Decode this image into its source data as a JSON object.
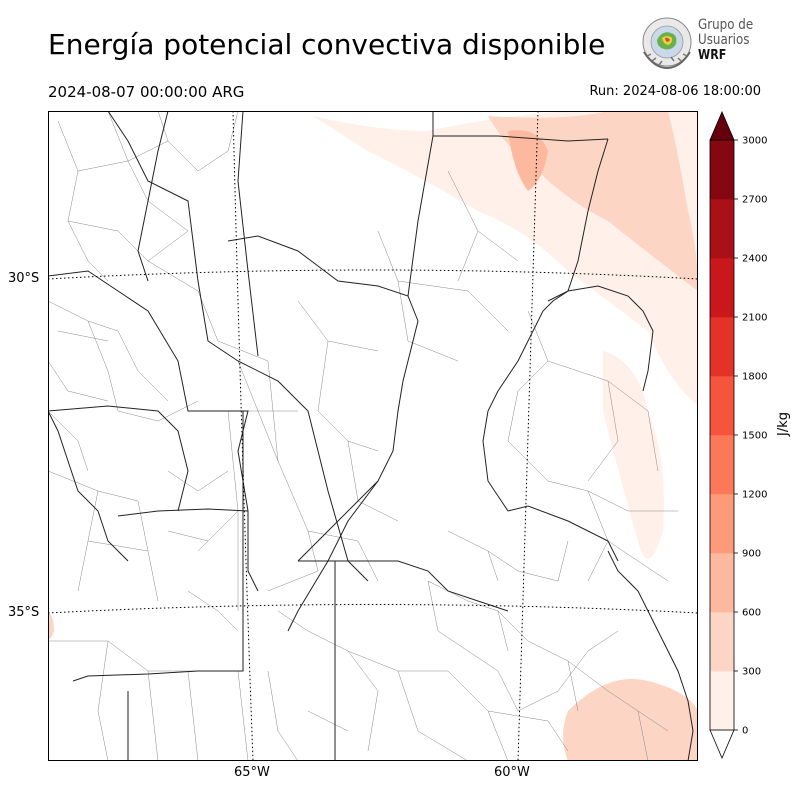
{
  "header": {
    "title": "Energía potencial convectiva disponible",
    "valid_time": "2024-08-07 00:00:00 ARG",
    "run_time": "Run: 2024-08-06 18:00:00"
  },
  "logo": {
    "line1": "Grupo de",
    "line2": "Usuarios",
    "line3": "WRF"
  },
  "map": {
    "latitude_labels": [
      "30°S",
      "35°S"
    ],
    "longitude_labels": [
      "65°W",
      "60°W"
    ]
  },
  "colorbar": {
    "unit": "J/kg",
    "tick_labels": [
      "0",
      "300",
      "600",
      "900",
      "1200",
      "1500",
      "1800",
      "2100",
      "2400",
      "2700",
      "3000"
    ],
    "colors": [
      "#fff0e9",
      "#fdd5c4",
      "#fcb99f",
      "#fc9a7a",
      "#fb7858",
      "#f5553c",
      "#e53228",
      "#ca171c",
      "#aa1017",
      "#840711"
    ],
    "extend_color": "#67000d"
  }
}
